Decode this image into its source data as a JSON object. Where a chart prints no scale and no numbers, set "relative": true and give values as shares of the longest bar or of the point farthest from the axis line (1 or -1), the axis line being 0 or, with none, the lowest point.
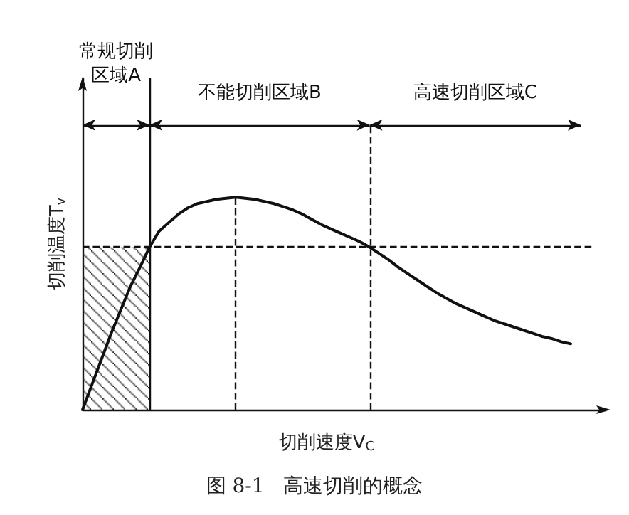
{
  "chart_data": {
    "type": "line",
    "title": "图 8-1   高速切削的概念",
    "xlabel": "切削速度V$_{C}$",
    "ylabel": "切削温度T$_{v}$",
    "relative": true,
    "marker": "none",
    "line_style": "solid",
    "categories": [
      null,
      null,
      null,
      null,
      null,
      null,
      null,
      null,
      null,
      null,
      null,
      null,
      null,
      null,
      null,
      null,
      null,
      null,
      null,
      null,
      null,
      null,
      null,
      null,
      null,
      null,
      null,
      null,
      null,
      null,
      null,
      null,
      null,
      null,
      null,
      null,
      null,
      null,
      null,
      null,
      null,
      null,
      null,
      null,
      null,
      null,
      null,
      null,
      null,
      null,
      null,
      null
    ],
    "series": [
      {
        "color": "#111111",
        "values": [
          0,
          0.12,
          0.24,
          0.36,
          0.47,
          0.58,
          0.67,
          0.765,
          0.84,
          0.88,
          0.92,
          0.95,
          0.97,
          0.98,
          0.99,
          0.995,
          1,
          0.995,
          0.99,
          0.98,
          0.97,
          0.955,
          0.94,
          0.92,
          0.895,
          0.87,
          0.85,
          0.83,
          0.81,
          0.79,
          0.765,
          0.735,
          0.705,
          0.67,
          0.64,
          0.61,
          0.58,
          0.55,
          0.525,
          0.5,
          0.48,
          0.46,
          0.44,
          0.42,
          0.405,
          0.39,
          0.375,
          0.36,
          0.345,
          0.335,
          0.32,
          0.31
        ]
      }
    ],
    "ref_lines": [
      {
        "axis": "y",
        "value": 0.765,
        "line_style": "dashed",
        "color": "#111111"
      }
    ],
    "annotations": [
      "常规切削区域A",
      "不能切削区域B",
      "高速切削区域C"
    ]
  }
}
